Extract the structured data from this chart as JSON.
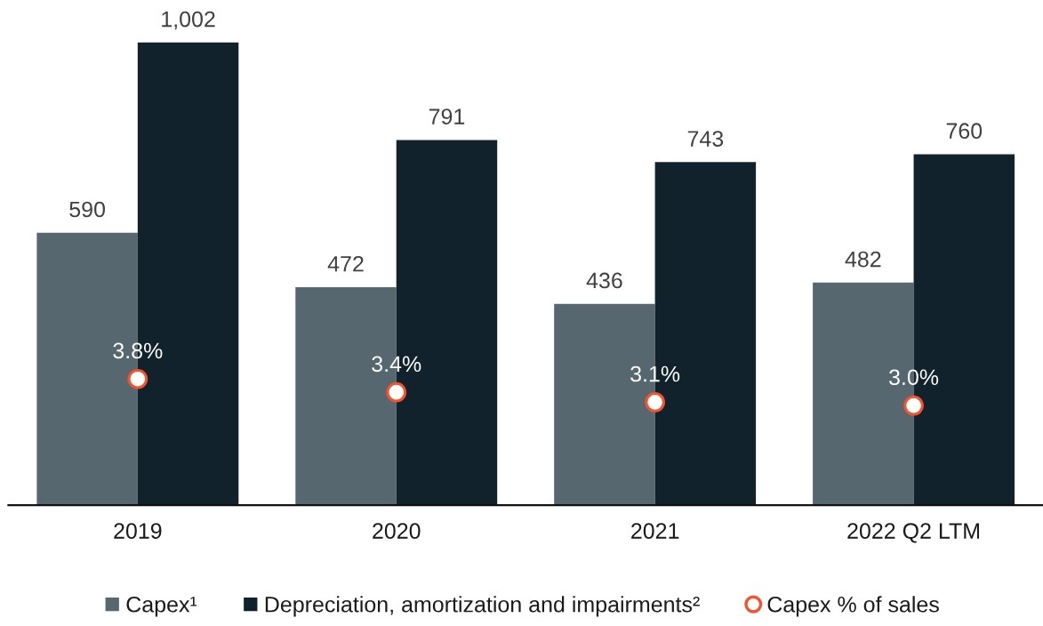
{
  "chart_data": {
    "type": "bar",
    "categories": [
      "2019",
      "2020",
      "2021",
      "2022 Q2 LTM"
    ],
    "series": [
      {
        "name": "Capex¹",
        "color": "#56676f",
        "values": [
          590,
          472,
          436,
          482
        ],
        "value_labels": [
          "590",
          "472",
          "436",
          "482"
        ]
      },
      {
        "name": "Depreciation, amortization and impairments²",
        "color": "#12222d",
        "values": [
          1002,
          791,
          743,
          760
        ],
        "value_labels": [
          "1,002",
          "791",
          "743",
          "760"
        ]
      },
      {
        "name": "Capex % of sales",
        "type": "scatter",
        "axis": "y2",
        "marker": "circle",
        "color": "#f4532e",
        "values": [
          3.8,
          3.4,
          3.1,
          3.0
        ],
        "value_labels": [
          "3.8%",
          "3.4%",
          "3.1%",
          "3.0%"
        ]
      }
    ],
    "tick_labels": "x",
    "legend": "bottom"
  }
}
